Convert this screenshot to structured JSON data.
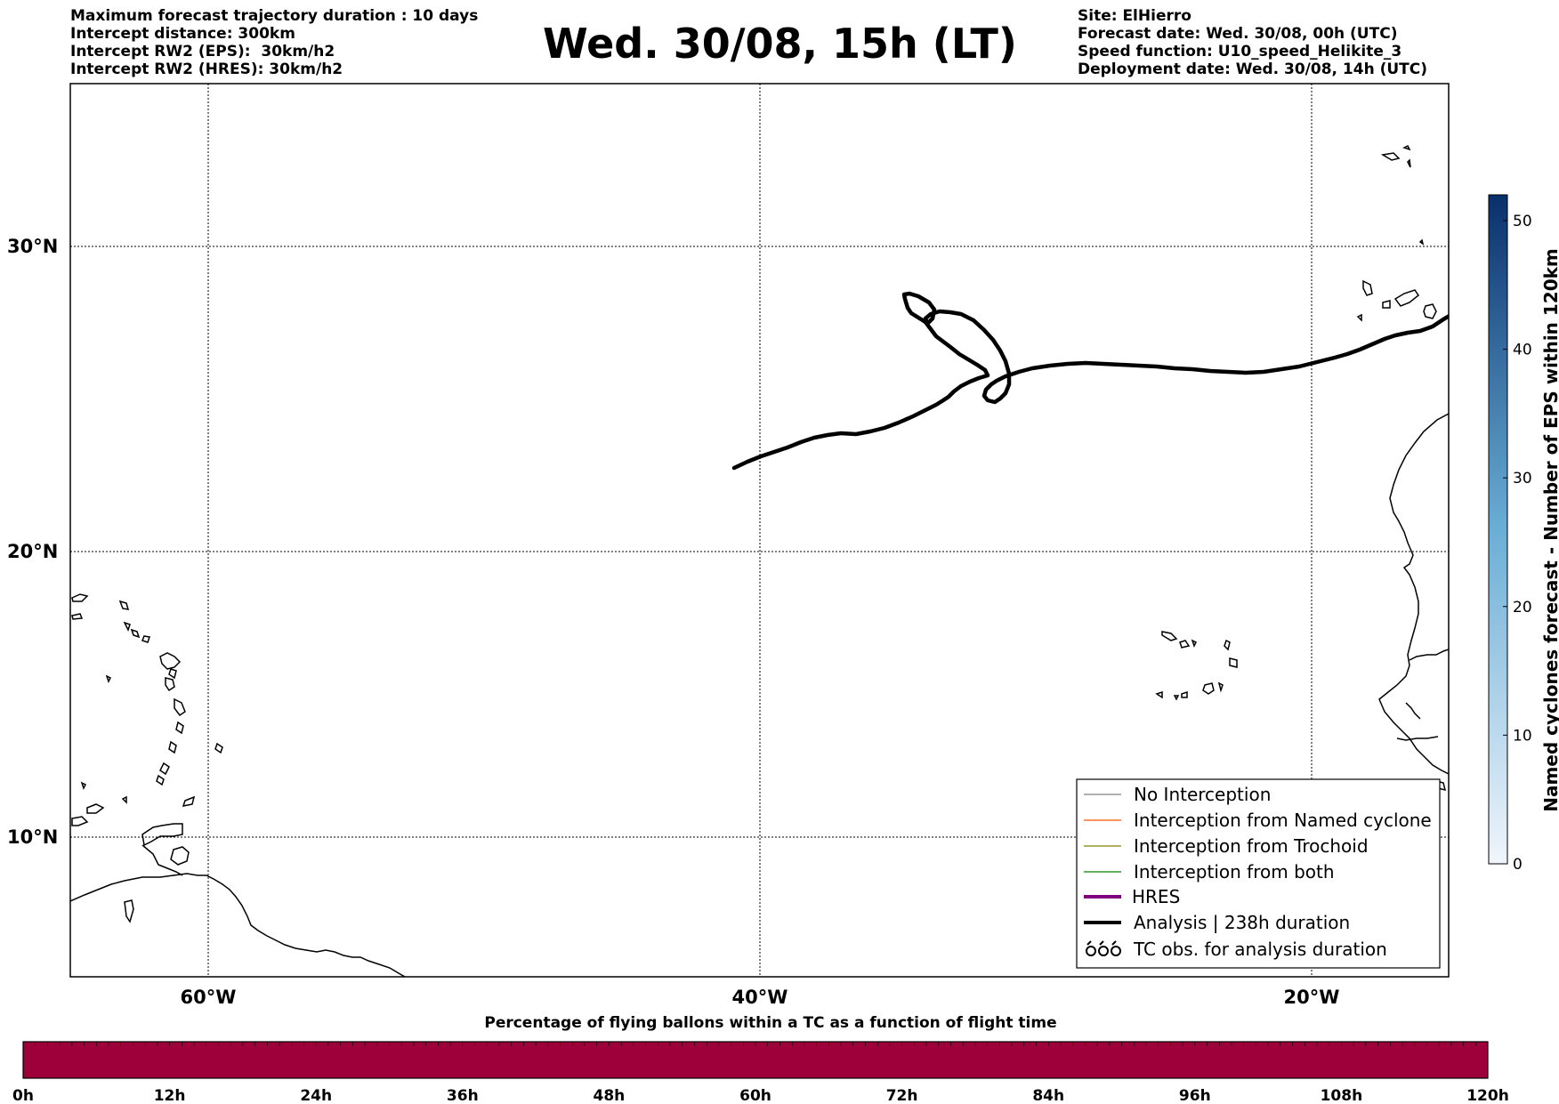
{
  "header": {
    "left_lines": [
      "Maximum forecast trajectory duration : 10 days",
      "Intercept distance: 300km",
      "Intercept RW2 (EPS):  30km/h2",
      "Intercept RW2 (HRES): 30km/h2"
    ],
    "title": "Wed. 30/08, 15h (LT)",
    "right_lines": [
      "Site: ElHierro",
      "Forecast date: Wed. 30/08, 00h (UTC)",
      "Speed function: U10_speed_Helikite_3",
      "Deployment date: Wed. 30/08, 14h (UTC)"
    ]
  },
  "map": {
    "lat_labels": [
      "30°N",
      "20°N",
      "10°N"
    ],
    "lon_labels": [
      "60°W",
      "40°W",
      "20°W"
    ],
    "extent": {
      "lon_min": -65,
      "lon_max": -15,
      "lat_min": 5.4,
      "lat_max": 34.7
    },
    "gridlines": true,
    "trajectory_color": "#000000",
    "trajectory_label": "Analysis | 238h duration"
  },
  "legend": {
    "position": "lower-right",
    "items": [
      {
        "label": "No Interception",
        "color": "#808080",
        "style": "thin"
      },
      {
        "label": "Interception from Named cyclone",
        "color": "#ff5500",
        "style": "thin"
      },
      {
        "label": "Interception from Trochoid",
        "color": "#808000",
        "style": "thin"
      },
      {
        "label": "Interception from both",
        "color": "#008000",
        "style": "thin"
      },
      {
        "label": "HRES",
        "color": "#800080",
        "style": "thick"
      },
      {
        "label": "Analysis | 238h duration",
        "color": "#000000",
        "style": "thick"
      },
      {
        "label": "TC obs. for analysis duration",
        "color": "#000000",
        "style": "symbol"
      }
    ]
  },
  "colorbar": {
    "title": "Named cyclones forecast - Number of EPS within 120km",
    "ticks": [
      "0",
      "10",
      "20",
      "30",
      "40",
      "50"
    ],
    "min": 0,
    "max": 52,
    "color_low": "#f0f5fb",
    "color_high": "#08306b"
  },
  "timebar": {
    "title": "Percentage of flying ballons within a TC as a function of flight time",
    "labels": [
      "0h",
      "12h",
      "24h",
      "36h",
      "48h",
      "60h",
      "72h",
      "84h",
      "96h",
      "108h",
      "120h"
    ],
    "fill_color": "#9e003a"
  }
}
